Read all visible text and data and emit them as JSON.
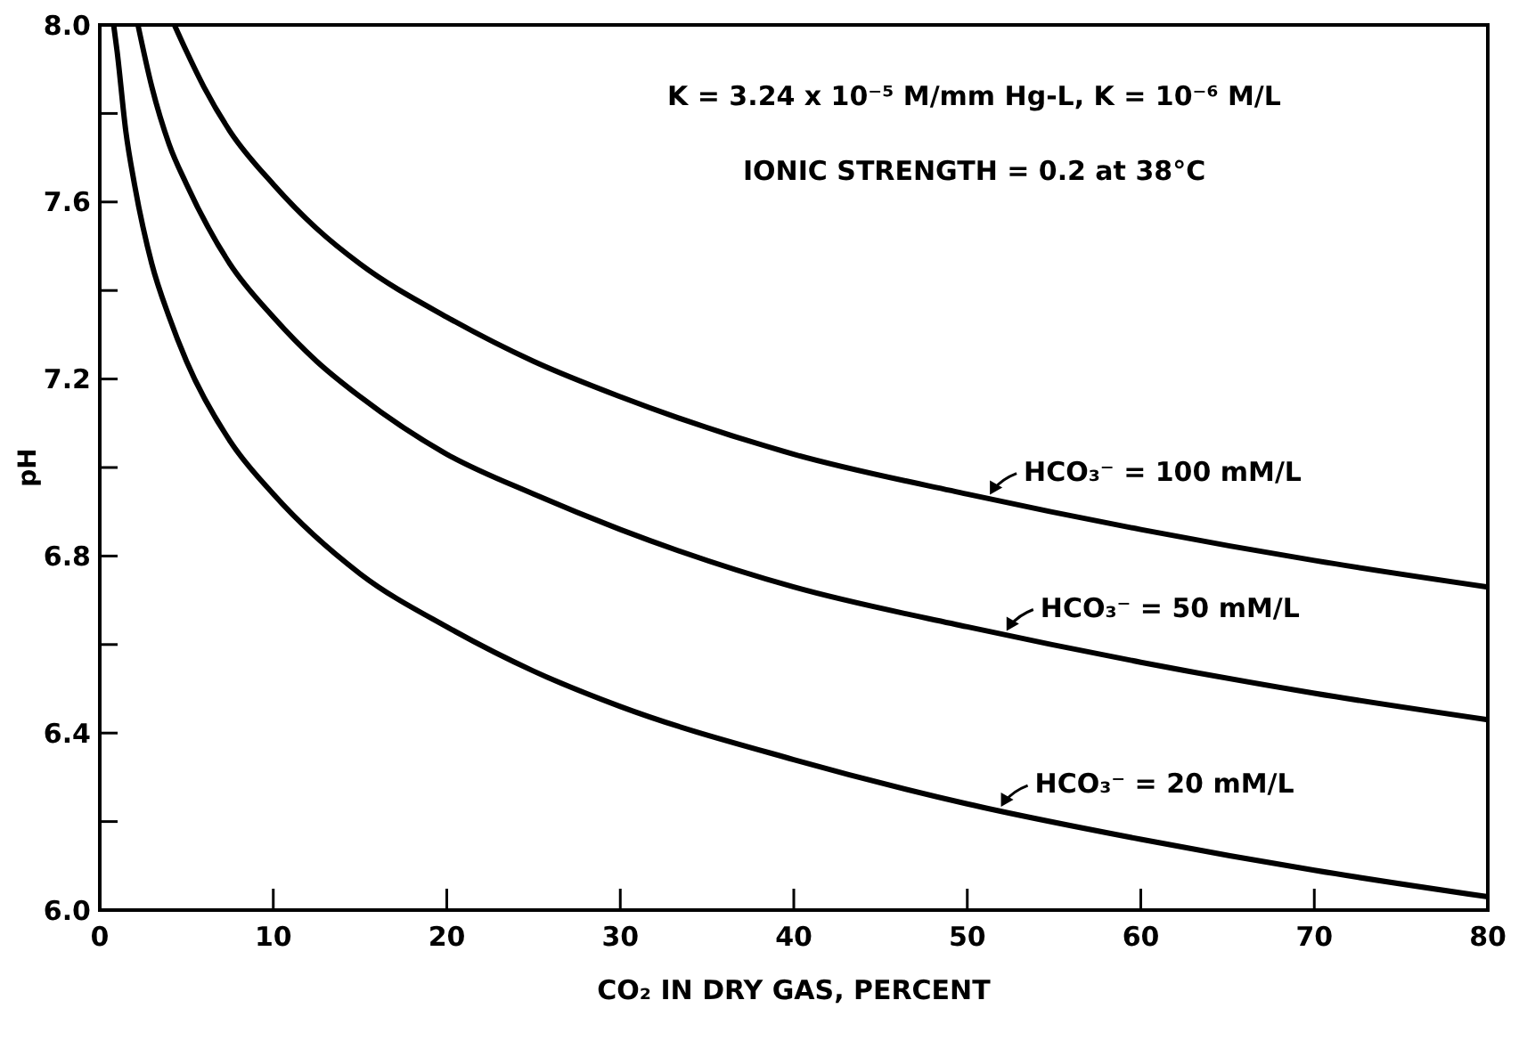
{
  "chart_data": {
    "type": "line",
    "xlabel": "CO₂ IN DRY GAS, PERCENT",
    "ylabel": "pH",
    "annotations": [
      "K = 3.24 x 10⁻⁵ M/mm Hg-L,  K = 10⁻⁶ M/L",
      "IONIC STRENGTH = 0.2 at 38°C"
    ],
    "xlim": [
      0,
      80
    ],
    "xticks": [
      0,
      10,
      20,
      30,
      40,
      50,
      60,
      70,
      80
    ],
    "ylim": [
      6.0,
      8.0
    ],
    "yticks": [
      {
        "value": 6.0,
        "label": "6.0"
      },
      {
        "value": 6.2,
        "label": null
      },
      {
        "value": 6.4,
        "label": "6.4"
      },
      {
        "value": 6.6,
        "label": null
      },
      {
        "value": 6.8,
        "label": "6.8"
      },
      {
        "value": 7.0,
        "label": null
      },
      {
        "value": 7.2,
        "label": "7.2"
      },
      {
        "value": 7.4,
        "label": null
      },
      {
        "value": 7.6,
        "label": "7.6"
      },
      {
        "value": 7.8,
        "label": null
      },
      {
        "value": 8.0,
        "label": "8.0"
      }
    ],
    "grid": false,
    "legend": "right",
    "marker": "none",
    "line_style": "solid",
    "series": [
      {
        "name": "HCO₃⁻ = 100 mM/L",
        "color": "#000000",
        "x": [
          4.3,
          5,
          6,
          7.5,
          10,
          12.5,
          15,
          20,
          25,
          30,
          40,
          50,
          60,
          70,
          80
        ],
        "values": [
          8.0,
          7.94,
          7.86,
          7.76,
          7.64,
          7.54,
          7.46,
          7.34,
          7.24,
          7.16,
          7.03,
          6.94,
          6.86,
          6.79,
          6.73
        ]
      },
      {
        "name": "HCO₃⁻ = 50 mM/L",
        "color": "#000000",
        "x": [
          2.2,
          3,
          4,
          5,
          7.5,
          10,
          12.5,
          15,
          20,
          25,
          30,
          40,
          50,
          60,
          70,
          80
        ],
        "values": [
          8.0,
          7.86,
          7.73,
          7.64,
          7.46,
          7.34,
          7.24,
          7.16,
          7.03,
          6.94,
          6.86,
          6.73,
          6.64,
          6.56,
          6.49,
          6.43
        ]
      },
      {
        "name": "HCO₃⁻ = 20 mM/L",
        "color": "#000000",
        "x": [
          0.8,
          1,
          1.5,
          2,
          3,
          4,
          5,
          7.5,
          10,
          15,
          20,
          25,
          30,
          40,
          50,
          60,
          70,
          80
        ],
        "values": [
          8.0,
          7.94,
          7.76,
          7.64,
          7.46,
          7.34,
          7.24,
          7.06,
          6.94,
          6.76,
          6.64,
          6.54,
          6.46,
          6.34,
          6.24,
          6.16,
          6.09,
          6.03
        ]
      }
    ]
  }
}
